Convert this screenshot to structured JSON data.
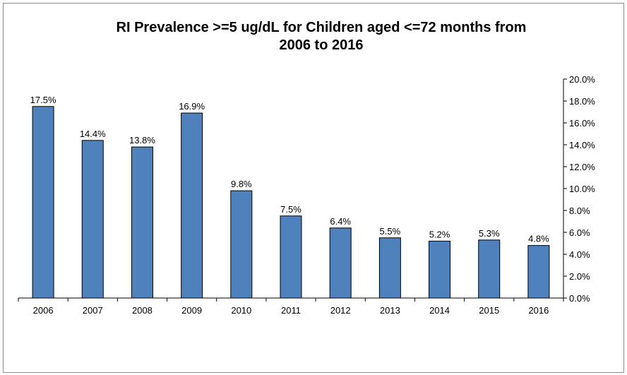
{
  "chart_data": {
    "type": "bar",
    "title": "RI Prevalence >=5 ug/dL for Children aged <=72 months from 2006 to 2016",
    "title_lines": [
      "RI Prevalence >=5 ug/dL for Children aged <=72 months from",
      "2006 to 2016"
    ],
    "categories": [
      "2006",
      "2007",
      "2008",
      "2009",
      "2010",
      "2011",
      "2012",
      "2013",
      "2014",
      "2015",
      "2016"
    ],
    "values": [
      17.5,
      14.4,
      13.8,
      16.9,
      9.8,
      7.5,
      6.4,
      5.5,
      5.2,
      5.3,
      4.8
    ],
    "data_labels": [
      "17.5%",
      "14.4%",
      "13.8%",
      "16.9%",
      "9.8%",
      "7.5%",
      "6.4%",
      "5.5%",
      "5.2%",
      "5.3%",
      "4.8%"
    ],
    "ylim": [
      0,
      20
    ],
    "yticks": [
      0,
      2,
      4,
      6,
      8,
      10,
      12,
      14,
      16,
      18,
      20
    ],
    "ytick_labels": [
      "0.0%",
      "2.0%",
      "4.0%",
      "6.0%",
      "8.0%",
      "10.0%",
      "12.0%",
      "14.0%",
      "16.0%",
      "18.0%",
      "20.0%"
    ],
    "y_axis_side": "right",
    "grid": false,
    "legend": "none",
    "xlabel": "",
    "ylabel": "",
    "bar_color": "#4f81bd",
    "bar_edge_color": "#000000"
  }
}
